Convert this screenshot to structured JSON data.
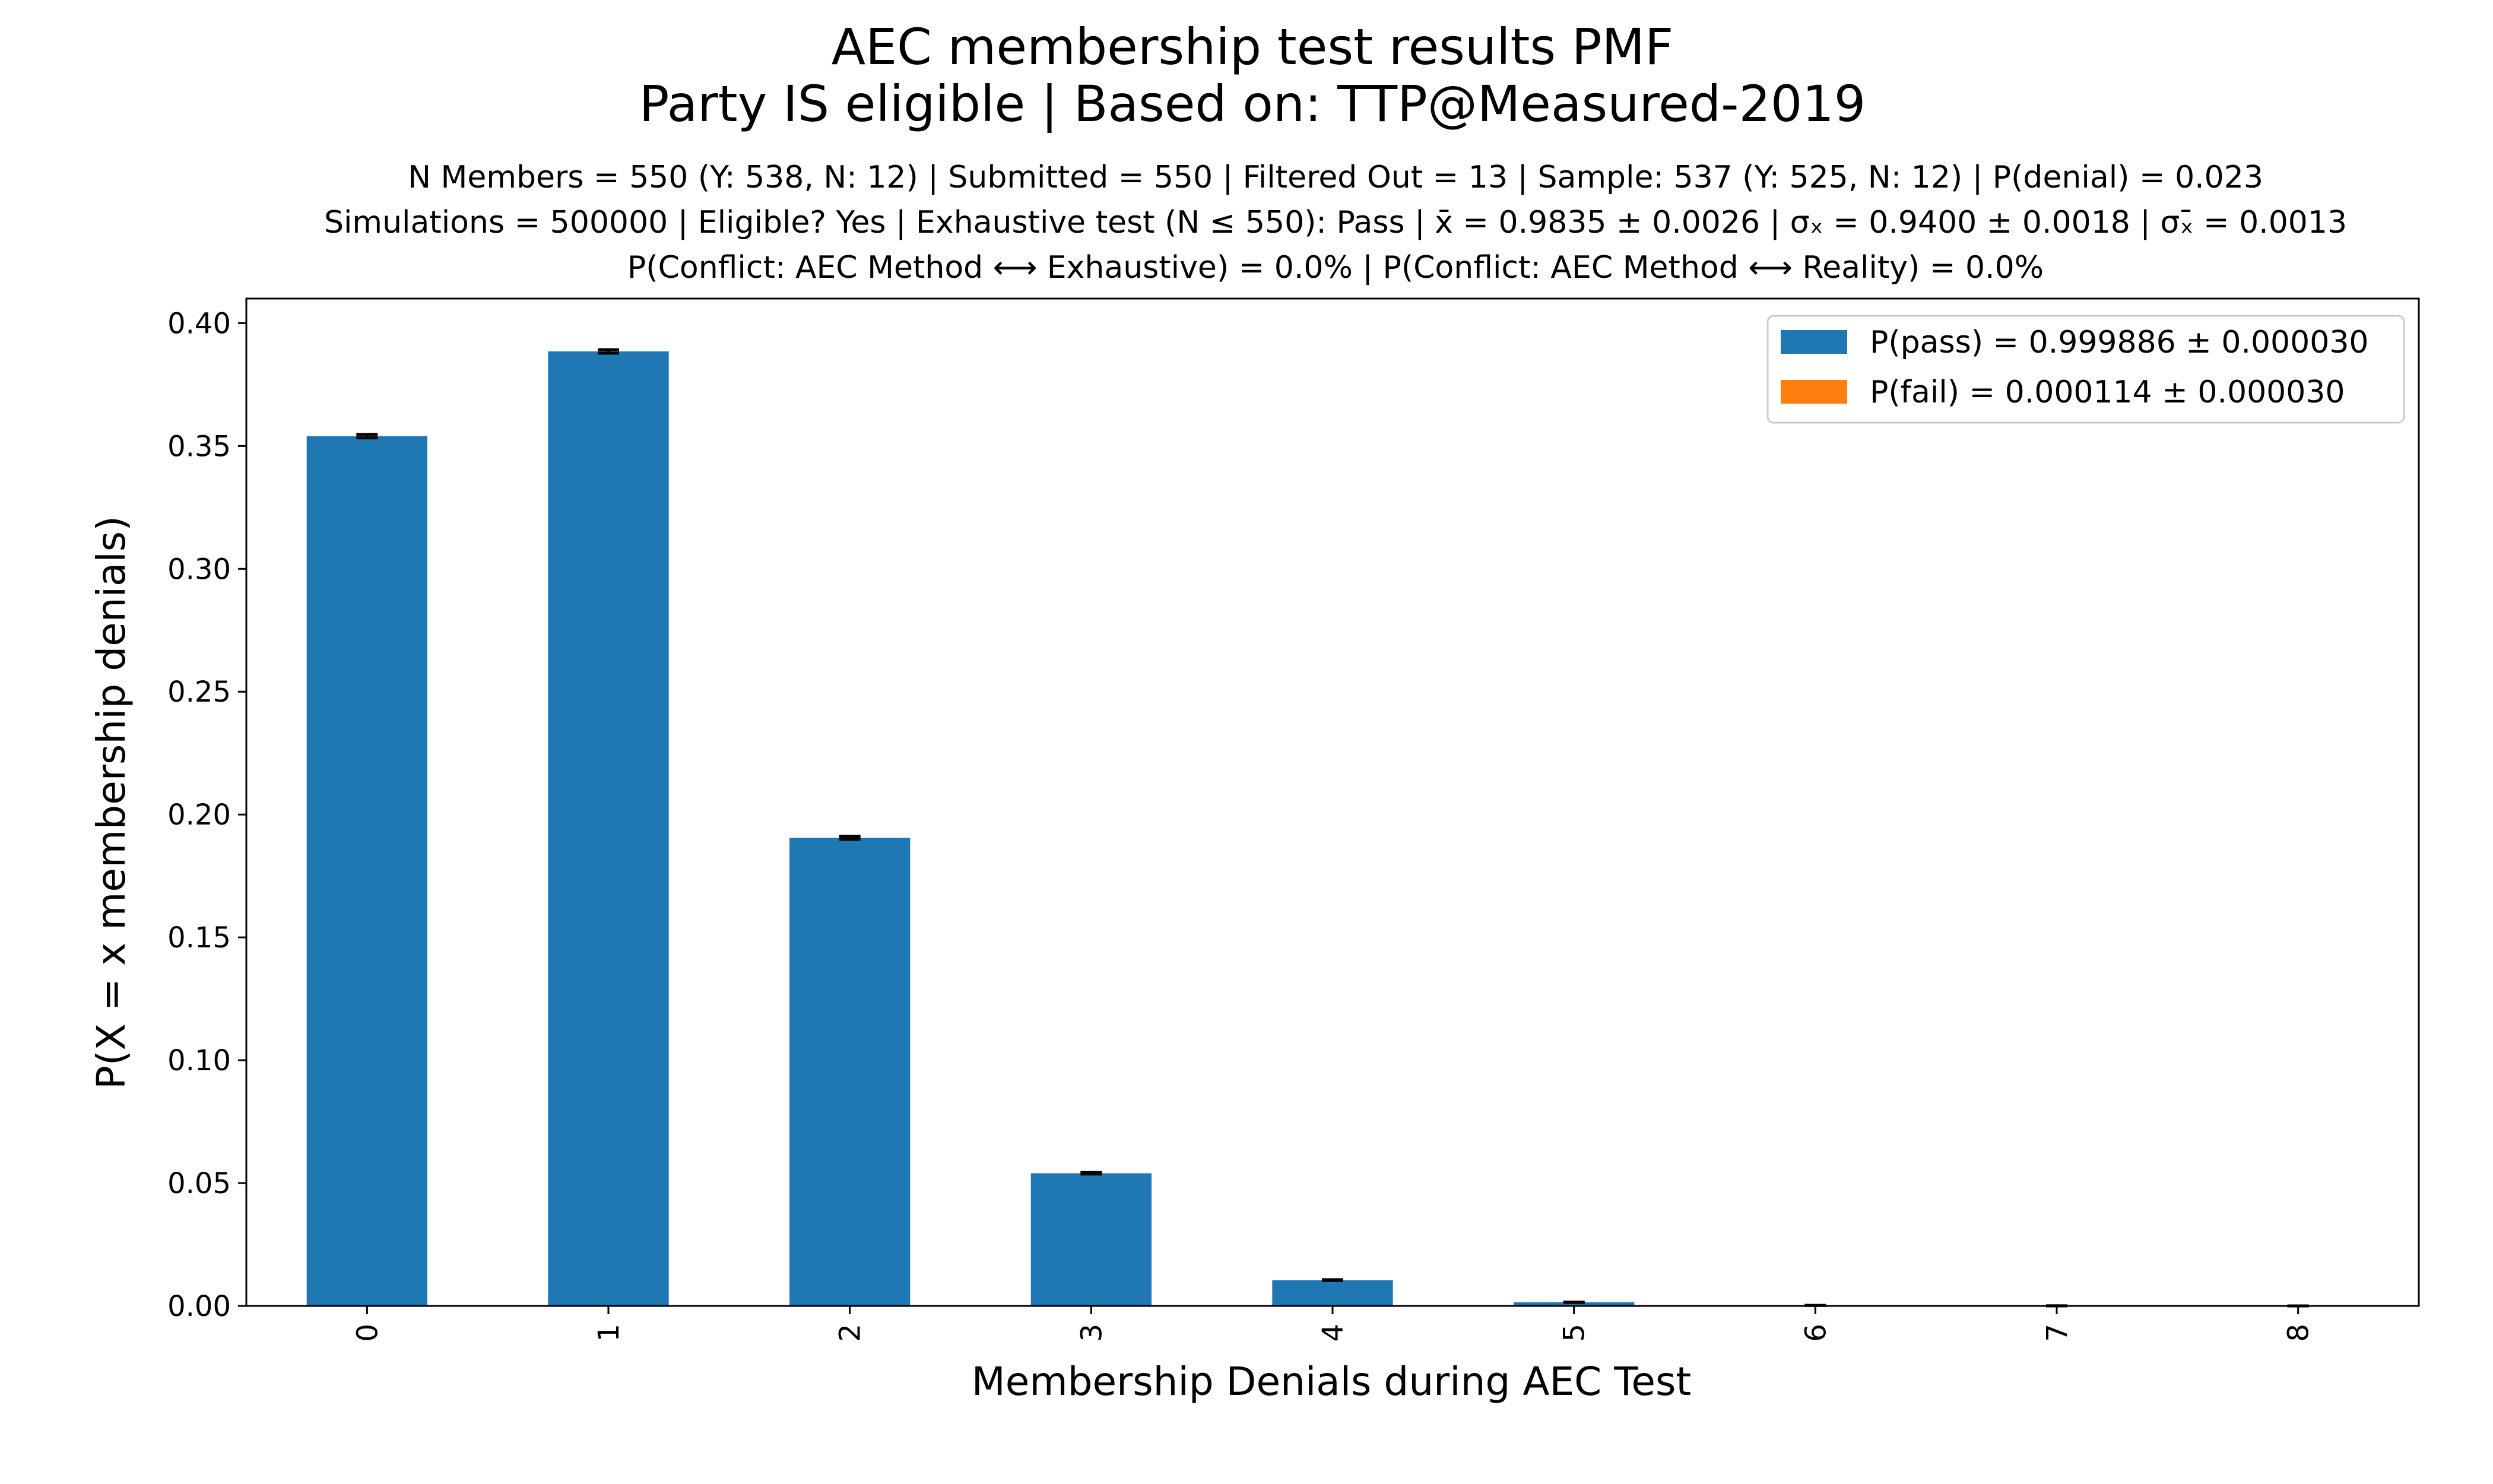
{
  "chart_data": {
    "type": "bar",
    "title": "AEC membership test results PMF",
    "title_line2": "Party IS eligible | Based on: TTP@Measured-2019",
    "subtitle_lines": [
      "N Members = 550 (Y: 538, N: 12) | Submitted = 550 | Filtered Out = 13 | Sample: 537 (Y: 525, N: 12) | P(denial) = 0.023",
      "Simulations = 500000 | Eligible? Yes | Exhaustive test (N ≤ 550): Pass | x̄ = 0.9835 ± 0.0026 | σₓ = 0.9400 ± 0.0018 | σₓ̄ = 0.0013",
      "P(Conflict: AEC Method ⟷ Exhaustive) = 0.0% | P(Conflict: AEC Method ⟷ Reality) = 0.0%"
    ],
    "xlabel": "Membership Denials during AEC Test",
    "ylabel": "P(X = x membership denials)",
    "categories": [
      "0",
      "1",
      "2",
      "3",
      "4",
      "5",
      "6",
      "7",
      "8"
    ],
    "series": [
      {
        "name": "P(pass) = 0.999886 ± 0.000030",
        "color": "#1f77b4",
        "values": [
          0.354,
          0.3885,
          0.1905,
          0.054,
          0.0105,
          0.0015,
          0.0002,
          3e-05,
          3e-06
        ],
        "errors": [
          0.0007,
          0.0007,
          0.0006,
          0.0003,
          0.00015,
          5e-05,
          2e-05,
          1e-05,
          3e-06
        ]
      },
      {
        "name": "P(fail) = 0.000114 ± 0.000030",
        "color": "#ff7f0e",
        "values": [
          0,
          0,
          0,
          0,
          0,
          0,
          0,
          0,
          0
        ]
      }
    ],
    "ylim": [
      0,
      0.41
    ],
    "yticks": [
      "0.00",
      "0.05",
      "0.10",
      "0.15",
      "0.20",
      "0.25",
      "0.30",
      "0.35",
      "0.40"
    ],
    "grid": false,
    "legend_position": "top-right"
  }
}
